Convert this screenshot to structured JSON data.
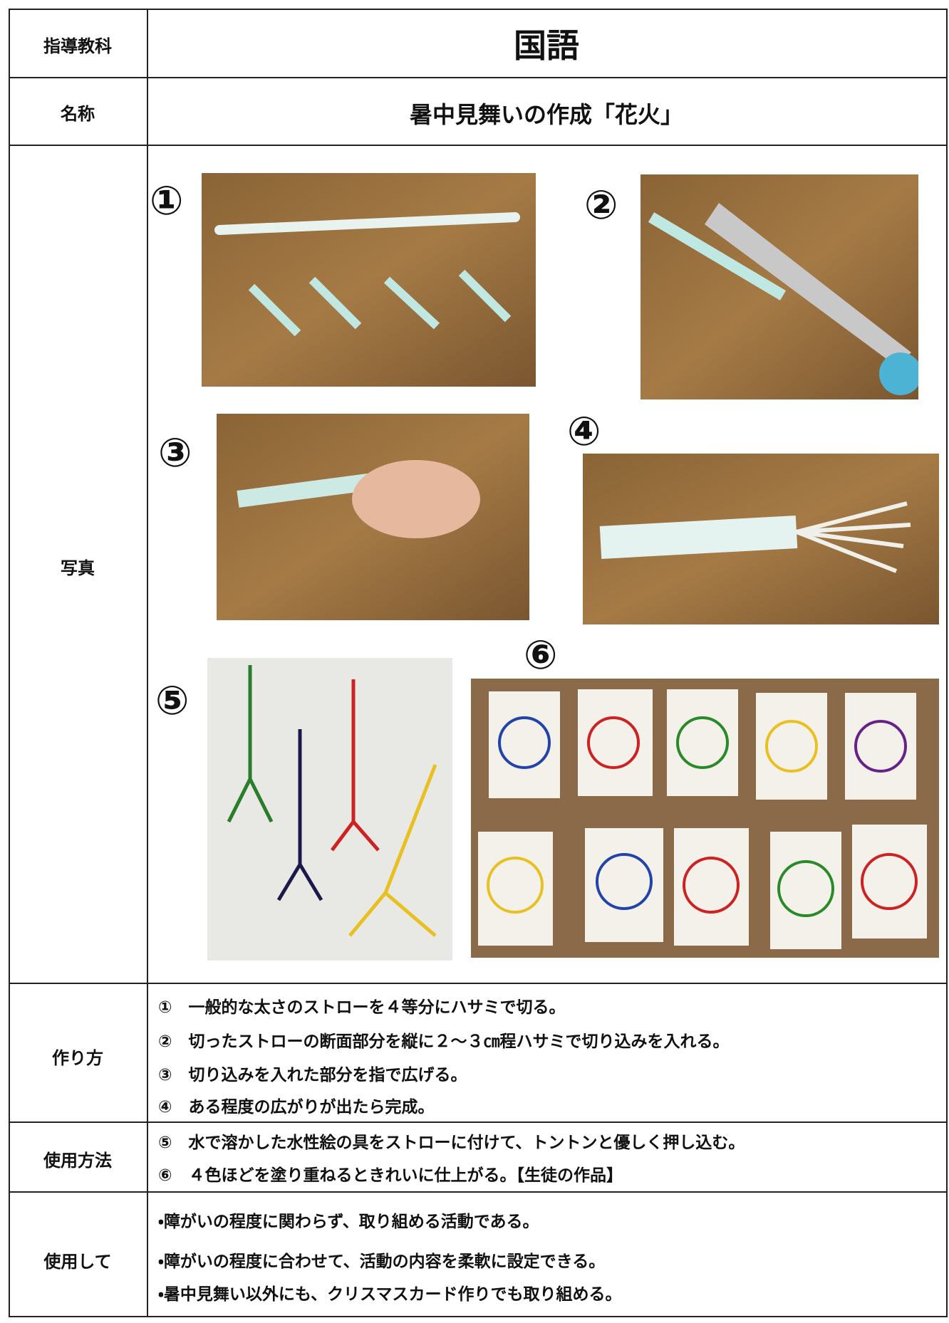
{
  "table": {
    "rows": [
      {
        "label": "指導教科",
        "content": "国語"
      },
      {
        "label": "名称",
        "content": "暑中見舞いの作成「花火」"
      },
      {
        "label": "写真",
        "photos": [
          "①",
          "②",
          "③",
          "④",
          "⑤",
          "⑥"
        ]
      },
      {
        "label": "作り方",
        "lines": [
          "①　一般的な太さのストローを４等分にハサミで切る。",
          "②　切ったストローの断面部分を縦に２～３㎝程ハサミで切り込みを入れる。",
          "③　切り込みを入れた部分を指で広げる。",
          "④　ある程度の広がりが出たら完成。"
        ]
      },
      {
        "label": "使用方法",
        "lines": [
          "⑤　水で溶かした水性絵の具をストローに付けて、トントンと優しく押し込む。",
          "⑥　４色ほどを塗り重ねるときれいに仕上がる。【生徒の作品】"
        ]
      },
      {
        "label": "使用して",
        "lines": [
          "・障がいの程度に関わらず、取り組める活動である。",
          "・障がいの程度に合わせて、活動の内容を柔軟に設定できる。",
          "・暑中見舞い以外にも、クリスマスカード作りでも取り組める。"
        ]
      }
    ]
  }
}
